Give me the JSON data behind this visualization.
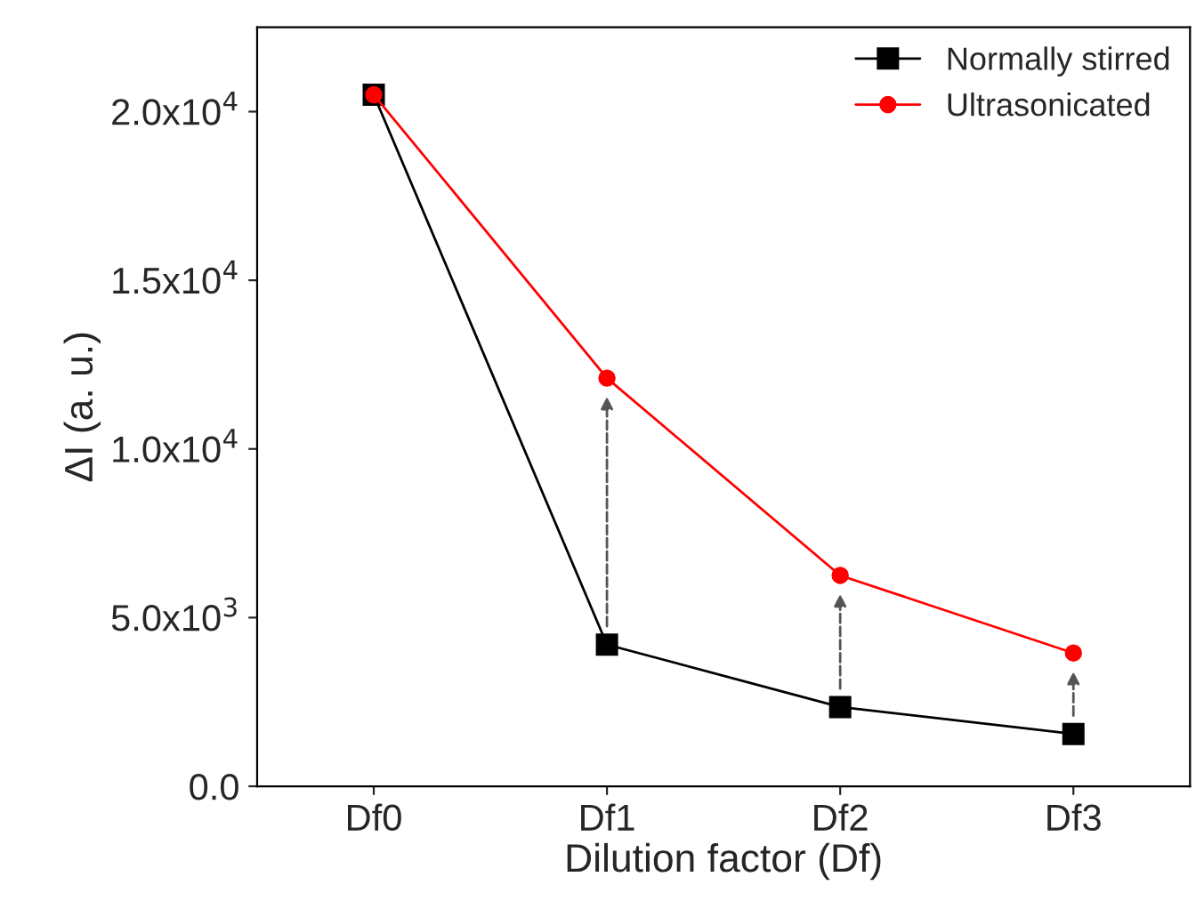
{
  "chart_data": {
    "type": "line",
    "xlabel": "Dilution factor (Df)",
    "ylabel": "ΔI (a. u.)",
    "categories": [
      "Df0",
      "Df1",
      "Df2",
      "Df3"
    ],
    "series": [
      {
        "name": "Normally stirred",
        "color": "#000000",
        "values": [
          20500,
          4200,
          2350,
          1550
        ],
        "marker": "square"
      },
      {
        "name": "Ultrasonicated",
        "color": "#ff0000",
        "values": [
          20500,
          12100,
          6250,
          3950
        ],
        "marker": "circle"
      }
    ],
    "ylim": [
      0,
      22500
    ],
    "yticks": [
      {
        "value": 0,
        "label": "0.0"
      },
      {
        "value": 5000,
        "label": "5.0x10$^{3}$"
      },
      {
        "value": 10000,
        "label": "1.0x10$^{4}$"
      },
      {
        "value": 15000,
        "label": "1.5x10$^{4}$"
      },
      {
        "value": 20000,
        "label": "2.0x10$^{4}$"
      }
    ],
    "grid": false,
    "legend": "top right",
    "line_style": "solid"
  }
}
